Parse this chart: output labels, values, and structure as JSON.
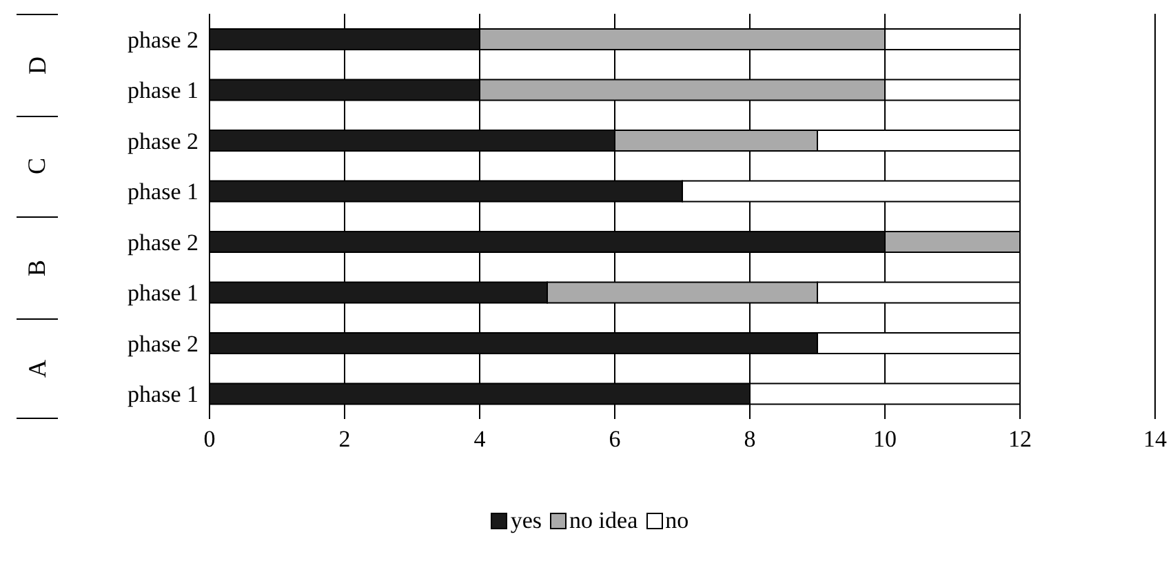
{
  "chart_data": {
    "type": "bar",
    "orientation": "horizontal",
    "stacked": true,
    "categories": [
      "phase 2",
      "phase 1",
      "phase 2",
      "phase 1",
      "phase 2",
      "phase 1",
      "phase 2",
      "phase 1"
    ],
    "series": [
      {
        "name": "yes",
        "color": "#1a1a1a",
        "values": [
          4,
          4,
          6,
          7,
          10,
          5,
          9,
          8
        ]
      },
      {
        "name": "no idea",
        "color": "#aaaaaa",
        "values": [
          6,
          6,
          3,
          0,
          2,
          4,
          0,
          0
        ]
      },
      {
        "name": "no",
        "color": "#ffffff",
        "values": [
          2,
          2,
          3,
          5,
          0,
          3,
          3,
          4
        ]
      }
    ],
    "annotations": [
      "D",
      "C",
      "B",
      "A"
    ],
    "xlim": [
      0,
      14
    ],
    "xticks": [
      0,
      2,
      4,
      6,
      8,
      10,
      12,
      14
    ],
    "grid": "x",
    "legend": "bottom"
  }
}
